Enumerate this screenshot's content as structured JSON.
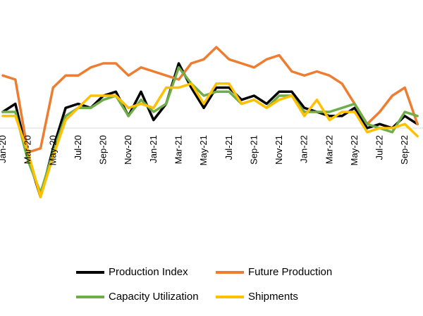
{
  "chart_data": {
    "type": "line",
    "x": [
      "Jan-20",
      "Feb-20",
      "Mar-20",
      "Apr-20",
      "May-20",
      "Jun-20",
      "Jul-20",
      "Aug-20",
      "Sep-20",
      "Oct-20",
      "Nov-20",
      "Dec-20",
      "Jan-21",
      "Feb-21",
      "Mar-21",
      "Apr-21",
      "May-21",
      "Jun-21",
      "Jul-21",
      "Aug-21",
      "Sep-21",
      "Oct-21",
      "Nov-21",
      "Dec-21",
      "Jan-22",
      "Feb-22",
      "Mar-22",
      "Apr-22",
      "May-22",
      "Jun-22",
      "Jul-22",
      "Aug-22",
      "Sep-22",
      "Oct-22"
    ],
    "tick_labels": [
      "Jan-20",
      "Mar-20",
      "May-20",
      "Jul-20",
      "Sep-20",
      "Nov-20",
      "Jan-21",
      "Mar-21",
      "May-21",
      "Jul-21",
      "Sep-21",
      "Nov-21",
      "Jan-22",
      "Mar-22",
      "May-22",
      "Jul-22",
      "Sep-22"
    ],
    "ylim": [
      -20,
      18
    ],
    "grid": false,
    "legend_position": "bottom",
    "series": [
      {
        "name": "Production Index",
        "color": "#000000",
        "values": [
          4,
          6,
          -7,
          -17,
          -5,
          5,
          6,
          5,
          8,
          9,
          3,
          9,
          2,
          6,
          16,
          10,
          5,
          10,
          10,
          7,
          8,
          6,
          9,
          9,
          5,
          4,
          3,
          3,
          5,
          0,
          1,
          0,
          3,
          1
        ]
      },
      {
        "name": "Future Production",
        "color": "#ED7D31",
        "values": [
          13,
          12,
          -6,
          -5,
          10,
          13,
          13,
          15,
          16,
          16,
          13,
          15,
          14,
          13,
          12,
          16,
          17,
          20,
          17,
          16,
          15,
          17,
          18,
          14,
          13,
          14,
          13,
          11,
          6,
          1,
          4,
          8,
          10,
          1
        ]
      },
      {
        "name": "Capacity Utilization",
        "color": "#70AD47",
        "values": [
          4,
          4,
          -8,
          -16,
          -6,
          3,
          5,
          5,
          7,
          8,
          3,
          7,
          4,
          6,
          15,
          11,
          8,
          9,
          9,
          6,
          7,
          5,
          8,
          8,
          4,
          4,
          4,
          5,
          6,
          1,
          0,
          -1,
          4,
          3
        ]
      },
      {
        "name": "Shipments",
        "color": "#FFC000",
        "values": [
          3,
          3,
          -6,
          -17,
          -7,
          2,
          5,
          8,
          8,
          8,
          5,
          6,
          5,
          10,
          10,
          11,
          6,
          11,
          11,
          6,
          7,
          5,
          7,
          8,
          3,
          7,
          2,
          4,
          4,
          -1,
          0,
          0,
          1,
          -2
        ]
      }
    ]
  }
}
